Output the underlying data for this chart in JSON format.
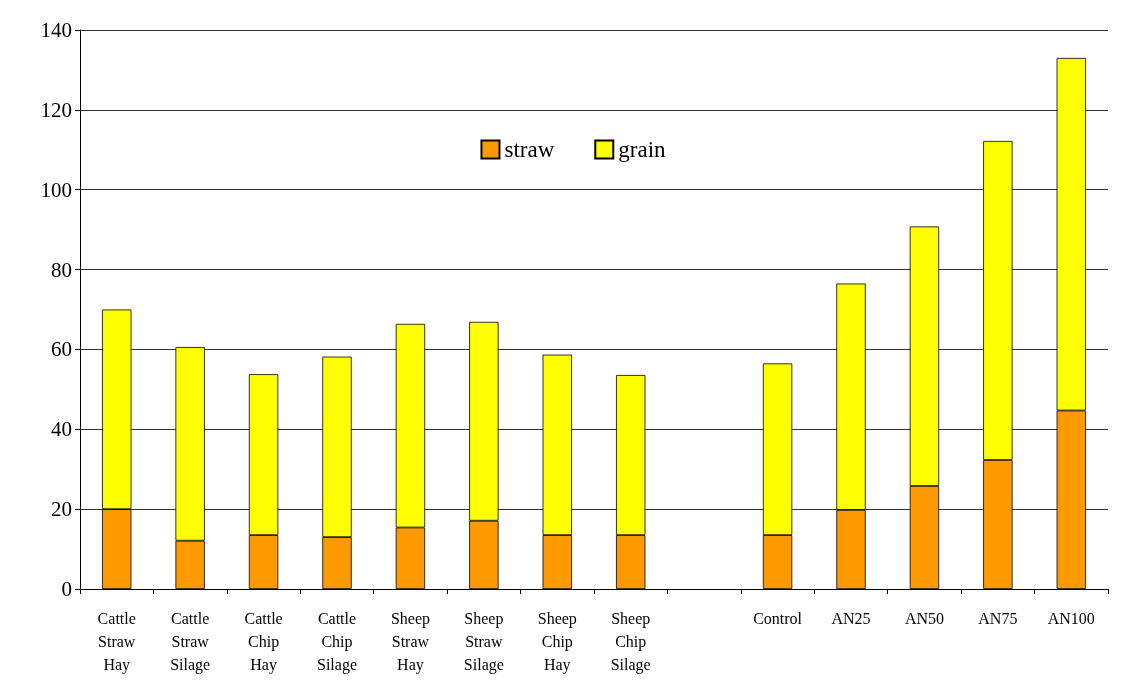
{
  "chart_data": {
    "type": "bar",
    "stacked": true,
    "categories": [
      "Cattle\nStraw\nHay",
      "Cattle\nStraw\nSilage",
      "Cattle\nChip\nHay",
      "Cattle\nChip\nSilage",
      "Sheep\nStraw\nHay",
      "Sheep\nStraw\nSilage",
      "Sheep\nChip\nHay",
      "Sheep\nChip\nSilage",
      null,
      "Control",
      "AN25",
      "AN50",
      "AN75",
      "AN100"
    ],
    "series": [
      {
        "name": "straw",
        "color": "#ff9900",
        "values": [
          20.0,
          12.1,
          13.5,
          13.0,
          15.4,
          17.1,
          13.5,
          13.5,
          null,
          13.5,
          19.8,
          25.8,
          32.3,
          44.7
        ]
      },
      {
        "name": "grain",
        "color": "#ffff00",
        "values": [
          50.0,
          48.5,
          40.3,
          45.2,
          51.0,
          49.8,
          45.2,
          40.1,
          null,
          43.0,
          56.7,
          65.0,
          79.9,
          88.3
        ]
      }
    ],
    "ylim": [
      0,
      140
    ],
    "yticks": [
      0,
      20,
      40,
      60,
      80,
      100,
      120,
      140
    ],
    "grid": "y",
    "legend": "top"
  }
}
